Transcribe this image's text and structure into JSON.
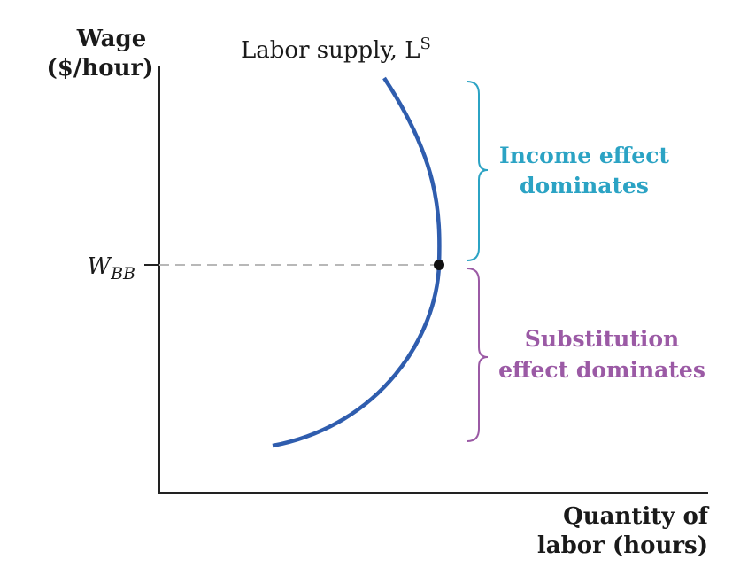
{
  "chart_data": {
    "type": "line",
    "ylabel_line1": "Wage",
    "ylabel_line2": "($/hour)",
    "xlabel_line1": "Quantity of",
    "xlabel_line2": "labor (hours)",
    "series": [
      {
        "name": "Labor supply, L",
        "name_superscript": "S",
        "color": "#2f5dae",
        "shape": "backward-bending"
      }
    ],
    "ytick": {
      "main": "W",
      "sub": "BB"
    },
    "point_at_wbb": {
      "color": "#111111"
    },
    "annotations": [
      {
        "line1": "Income effect",
        "line2": "dominates",
        "color": "#2ba3c4",
        "region": "above W_BB"
      },
      {
        "line1": "Substitution",
        "line2": "effect dominates",
        "color": "#9b5aa5",
        "region": "below W_BB"
      }
    ],
    "grid": false,
    "legend": "none"
  }
}
